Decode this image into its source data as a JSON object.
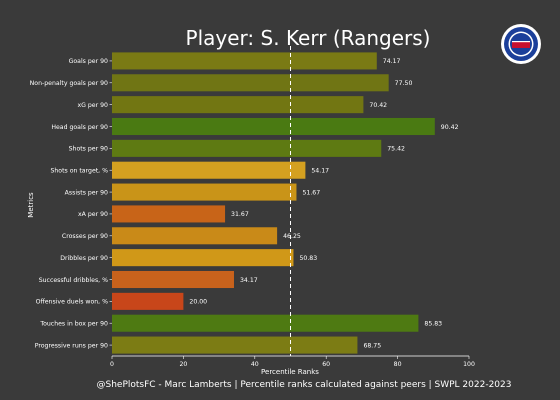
{
  "chart_data": {
    "type": "bar",
    "orientation": "horizontal",
    "title": "Player: S. Kerr (Rangers)",
    "xlabel": "Percentile Ranks",
    "ylabel": "Metrics",
    "footer": "@ShePlotsFC - Marc Lamberts | Percentile ranks calculated against peers | SWPL 2022-2023",
    "logo": "rangers-crest",
    "xlim": [
      0,
      100
    ],
    "xticks": [
      "0",
      "20",
      "40",
      "60",
      "80",
      "100"
    ],
    "reference_line": 50,
    "grid": false,
    "categories": [
      "Goals per 90",
      "Non-penalty goals per 90",
      "xG per 90",
      "Head goals per 90",
      "Shots per 90",
      "Shots on target, %",
      "Assists per 90",
      "xA per 90",
      "Crosses per 90",
      "Dribbles per 90",
      "Successful dribbles, %",
      "Offensive duels won, %",
      "Touches in box per 90",
      "Progressive runs per 90"
    ],
    "values": [
      74.17,
      77.5,
      70.42,
      90.42,
      75.42,
      54.17,
      51.67,
      31.67,
      46.25,
      50.83,
      34.17,
      20.0,
      85.83,
      68.75
    ],
    "value_labels": [
      "74.17",
      "77.50",
      "70.42",
      "90.42",
      "75.42",
      "54.17",
      "51.67",
      "31.67",
      "46.25",
      "50.83",
      "34.17",
      "20.00",
      "85.83",
      "68.75"
    ],
    "colors": [
      "#7a7a14",
      "#707514",
      "#727612",
      "#4a7a12",
      "#5e7a12",
      "#d4a020",
      "#c99418",
      "#c86418",
      "#c98a18",
      "#d09818",
      "#c8621c",
      "#c8461a",
      "#4e7a12",
      "#7c7c14"
    ]
  }
}
